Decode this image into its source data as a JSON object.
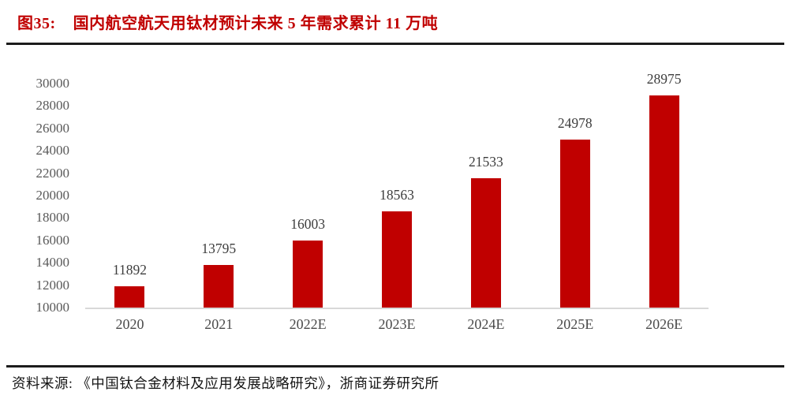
{
  "header": {
    "figure_label": "图35:",
    "title": "国内航空航天用钛材预计未来 5 年需求累计 11 万吨"
  },
  "footer": {
    "source": "资料来源: 《中国钛合金材料及应用发展战略研究》，浙商证券研究所"
  },
  "colors": {
    "accent": "#C00000",
    "bar": "#C00000",
    "tick_label": "#595959",
    "value_label": "#3D3D3D",
    "axis_line": "#D8D8D8",
    "divider": "#1C1C1C"
  },
  "chart_data": {
    "type": "bar",
    "categories": [
      "2020",
      "2021",
      "2022E",
      "2023E",
      "2024E",
      "2025E",
      "2026E"
    ],
    "values": [
      11892,
      13795,
      16003,
      18563,
      21533,
      24978,
      28975
    ],
    "title": "图35: 国内航空航天用钛材预计未来 5 年需求累计 11 万吨",
    "xlabel": "",
    "ylabel": "",
    "ylim": [
      10000,
      30000
    ],
    "ytick_step": 2000,
    "yticks": [
      10000,
      12000,
      14000,
      16000,
      18000,
      20000,
      22000,
      24000,
      26000,
      28000,
      30000
    ],
    "grid": false,
    "legend": null,
    "data_labels": true,
    "bar_color": "#C00000"
  }
}
